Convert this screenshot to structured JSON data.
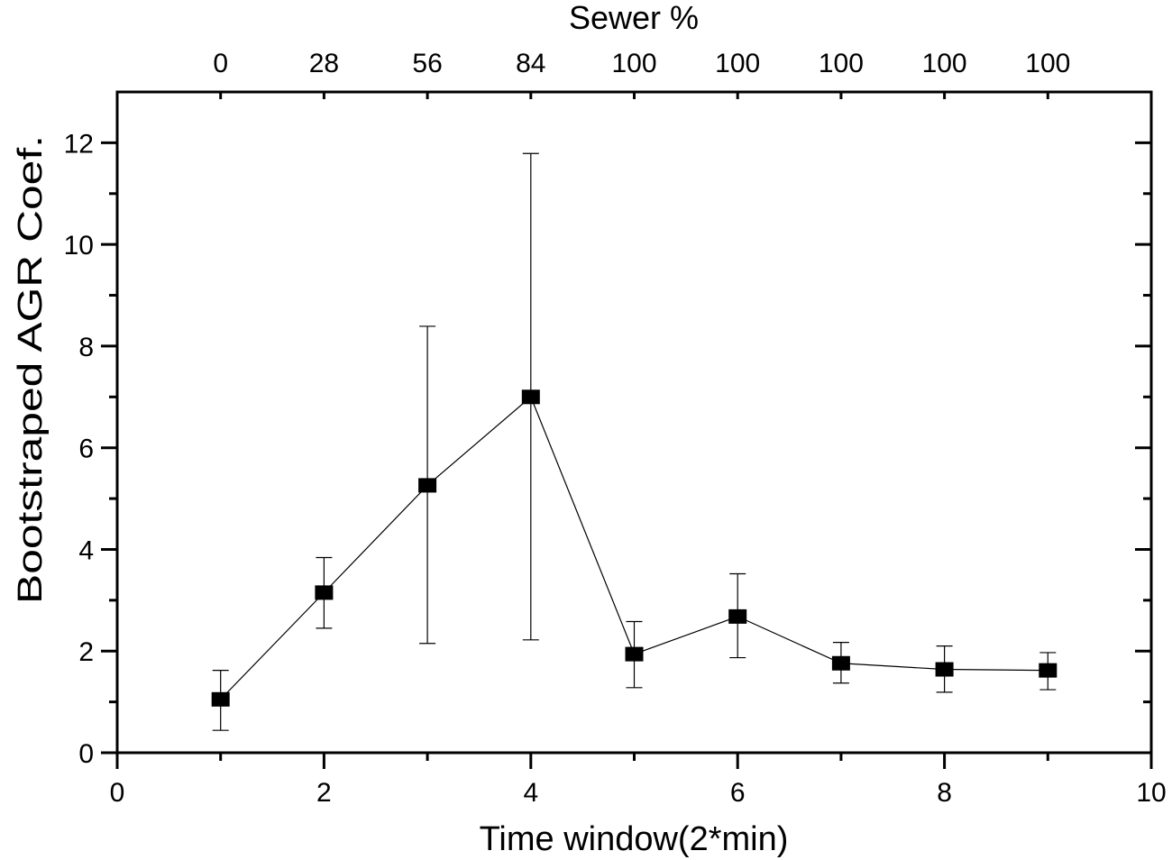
{
  "chart_data": {
    "type": "line",
    "title": "",
    "xlabel": "Time window(2*min)",
    "ylabel": "Bootstraped AGR Coef.",
    "top_axis_label": "Sewer %",
    "top_axis_ticks": [
      {
        "x": 1,
        "label": "0"
      },
      {
        "x": 2,
        "label": "28"
      },
      {
        "x": 3,
        "label": "56"
      },
      {
        "x": 4,
        "label": "84"
      },
      {
        "x": 5,
        "label": "100"
      },
      {
        "x": 6,
        "label": "100"
      },
      {
        "x": 7,
        "label": "100"
      },
      {
        "x": 8,
        "label": "100"
      },
      {
        "x": 9,
        "label": "100"
      }
    ],
    "xlim": [
      0,
      10
    ],
    "ylim": [
      0,
      13
    ],
    "xticks": [
      "0",
      "2",
      "4",
      "6",
      "8",
      "10"
    ],
    "yticks": [
      "0",
      "2",
      "4",
      "6",
      "8",
      "10",
      "12"
    ],
    "grid": false,
    "series": [
      {
        "name": "AGR Coef.",
        "color": "#000000",
        "marker": "square",
        "x": [
          1,
          2,
          3,
          4,
          5,
          6,
          7,
          8,
          9
        ],
        "y": [
          1.05,
          3.15,
          5.26,
          7.0,
          1.94,
          2.68,
          1.76,
          1.64,
          1.62
        ],
        "err_upper": [
          1.62,
          3.84,
          8.39,
          11.79,
          2.58,
          3.52,
          2.17,
          2.1,
          1.97
        ],
        "err_lower": [
          0.44,
          2.45,
          2.15,
          2.22,
          1.28,
          1.87,
          1.37,
          1.19,
          1.24
        ]
      }
    ]
  }
}
